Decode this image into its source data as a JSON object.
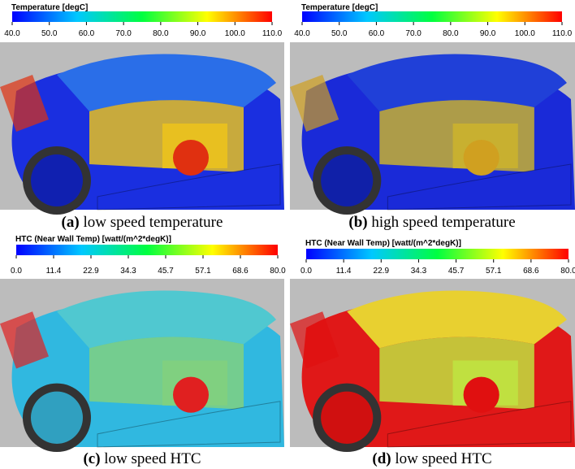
{
  "panels": [
    {
      "colorbar_title": "Temperature [degC]",
      "ticks": [
        "40.0",
        "50.0",
        "60.0",
        "70.0",
        "80.0",
        "90.0",
        "100.0",
        "110.0"
      ],
      "caption_label": "(a)",
      "caption_text": "low speed temperature"
    },
    {
      "colorbar_title": "Temperature [degC]",
      "ticks": [
        "40.0",
        "50.0",
        "60.0",
        "70.0",
        "80.0",
        "90.0",
        "100.0",
        "110.0"
      ],
      "caption_label": "(b)",
      "caption_text": "high speed temperature"
    },
    {
      "colorbar_title": "HTC (Near Wall Temp) [watt/(m^2*degK)]",
      "ticks": [
        "0.0",
        "11.4",
        "22.9",
        "34.3",
        "45.7",
        "57.1",
        "68.6",
        "80.0"
      ],
      "caption_label": "(c)",
      "caption_text": "low speed HTC"
    },
    {
      "colorbar_title": "HTC (Near Wall Temp) [watt/(m^2*degK)]",
      "ticks": [
        "0.0",
        "11.4",
        "22.9",
        "34.3",
        "45.7",
        "57.1",
        "68.6",
        "80.0"
      ],
      "caption_label": "(d)",
      "caption_text": "low speed HTC"
    }
  ]
}
